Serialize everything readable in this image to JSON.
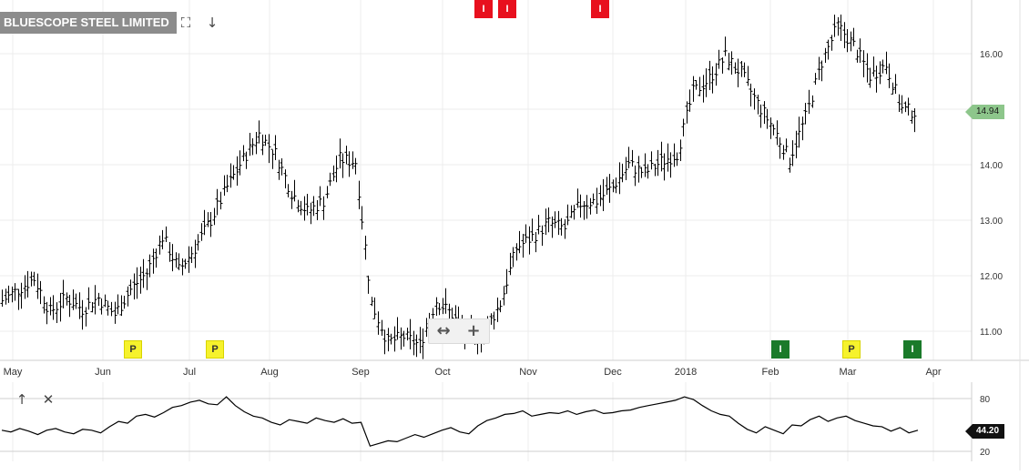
{
  "title": "BLUESCOPE STEEL LIMITED",
  "toolbar": {
    "expand_icon": "expand-icon",
    "download_icon": "arrow-down-icon"
  },
  "zoom": {
    "minus_label": "↔",
    "plus_label": "+"
  },
  "indicator": {
    "up_icon": "arrow-up-icon",
    "close_icon": "close-icon"
  },
  "colors": {
    "event_red": "#e8101e",
    "event_green": "#1a7a2a",
    "event_yellow": "#f6f22c",
    "price_tag": "#8dc68b",
    "line": "#000000",
    "grid": "#ececec"
  },
  "chart_data": [
    {
      "type": "ohlc",
      "title": "BLUESCOPE STEEL LIMITED",
      "x_tick_labels": [
        "May",
        "Jun",
        "Jul",
        "Aug",
        "Sep",
        "Oct",
        "Nov",
        "Dec",
        "2018",
        "Feb",
        "Mar",
        "Apr"
      ],
      "y_tick_values": [
        11.0,
        12.0,
        13.0,
        14.0,
        15.0,
        16.0
      ],
      "y_tick_labels": [
        "11.00",
        "12.00",
        "13.00",
        "14.00",
        "",
        "16.00"
      ],
      "ylim": [
        10.45,
        17.0
      ],
      "grid": true,
      "last_price": 14.94,
      "last_price_label": "14.94",
      "series_close": [
        {
          "x": "2017-04-24",
          "y": 11.55
        },
        {
          "x": "2017-05-01",
          "y": 11.75
        },
        {
          "x": "2017-05-08",
          "y": 11.95
        },
        {
          "x": "2017-05-15",
          "y": 11.35
        },
        {
          "x": "2017-05-22",
          "y": 11.6
        },
        {
          "x": "2017-05-29",
          "y": 11.4
        },
        {
          "x": "2017-06-05",
          "y": 11.6
        },
        {
          "x": "2017-06-12",
          "y": 11.3
        },
        {
          "x": "2017-06-19",
          "y": 11.75
        },
        {
          "x": "2017-06-26",
          "y": 12.05
        },
        {
          "x": "2017-07-03",
          "y": 12.7
        },
        {
          "x": "2017-07-10",
          "y": 12.1
        },
        {
          "x": "2017-07-17",
          "y": 12.5
        },
        {
          "x": "2017-07-24",
          "y": 13.0
        },
        {
          "x": "2017-07-31",
          "y": 13.6
        },
        {
          "x": "2017-08-07",
          "y": 14.1
        },
        {
          "x": "2017-08-14",
          "y": 14.55
        },
        {
          "x": "2017-08-21",
          "y": 14.2
        },
        {
          "x": "2017-08-28",
          "y": 13.5
        },
        {
          "x": "2017-09-04",
          "y": 13.15
        },
        {
          "x": "2017-09-11",
          "y": 13.35
        },
        {
          "x": "2017-09-18",
          "y": 14.1
        },
        {
          "x": "2017-09-25",
          "y": 14.05
        },
        {
          "x": "2017-10-02",
          "y": 11.5
        },
        {
          "x": "2017-10-09",
          "y": 10.8
        },
        {
          "x": "2017-10-16",
          "y": 10.9
        },
        {
          "x": "2017-10-23",
          "y": 10.75
        },
        {
          "x": "2017-10-30",
          "y": 11.55
        },
        {
          "x": "2017-11-06",
          "y": 11.3
        },
        {
          "x": "2017-11-13",
          "y": 10.85
        },
        {
          "x": "2017-11-20",
          "y": 11.0
        },
        {
          "x": "2017-11-27",
          "y": 11.5
        },
        {
          "x": "2017-12-04",
          "y": 12.5
        },
        {
          "x": "2017-12-11",
          "y": 12.7
        },
        {
          "x": "2017-12-18",
          "y": 12.95
        },
        {
          "x": "2017-12-25",
          "y": 12.85
        },
        {
          "x": "2018-01-01",
          "y": 13.3
        },
        {
          "x": "2018-01-08",
          "y": 13.35
        },
        {
          "x": "2018-01-15",
          "y": 13.6
        },
        {
          "x": "2018-01-22",
          "y": 14.0
        },
        {
          "x": "2018-01-29",
          "y": 13.85
        },
        {
          "x": "2018-02-05",
          "y": 14.05
        },
        {
          "x": "2018-02-12",
          "y": 14.2
        },
        {
          "x": "2018-02-19",
          "y": 15.3
        },
        {
          "x": "2018-02-26",
          "y": 15.55
        },
        {
          "x": "2018-03-05",
          "y": 15.95
        },
        {
          "x": "2018-03-12",
          "y": 15.65
        },
        {
          "x": "2018-03-19",
          "y": 15.1
        },
        {
          "x": "2018-03-26",
          "y": 14.65
        },
        {
          "x": "2018-04-02",
          "y": 14.1
        },
        {
          "x": "2018-04-09",
          "y": 14.85
        },
        {
          "x": "2018-04-16",
          "y": 15.85
        },
        {
          "x": "2018-04-23",
          "y": 16.5
        },
        {
          "x": "2018-04-30",
          "y": 16.15
        },
        {
          "x": "2018-05-07",
          "y": 15.6
        },
        {
          "x": "2018-05-14",
          "y": 15.8
        },
        {
          "x": "2018-05-21",
          "y": 15.0
        },
        {
          "x": "2018-05-28",
          "y": 14.94
        }
      ],
      "event_markers": [
        {
          "label": "I",
          "kind": "red",
          "x": "2017-11-06",
          "position": "top"
        },
        {
          "label": "I",
          "kind": "red",
          "x": "2017-11-20",
          "position": "top"
        },
        {
          "label": "I",
          "kind": "red",
          "x": "2018-01-08",
          "position": "top"
        },
        {
          "label": "P",
          "kind": "yellow",
          "x": "2017-06-12",
          "position": "bottom"
        },
        {
          "label": "P",
          "kind": "yellow",
          "x": "2017-07-24",
          "position": "bottom"
        },
        {
          "label": "I",
          "kind": "green",
          "x": "2018-04-02",
          "position": "bottom"
        },
        {
          "label": "P",
          "kind": "yellow",
          "x": "2018-05-07",
          "position": "bottom"
        },
        {
          "label": "I",
          "kind": "green",
          "x": "2018-05-28",
          "position": "bottom"
        }
      ]
    },
    {
      "type": "line",
      "y_tick_values": [
        20,
        80
      ],
      "y_tick_labels": [
        "20",
        "80"
      ],
      "ylim": [
        15,
        85
      ],
      "last_value": 44.2,
      "last_value_label": "44.20",
      "values": [
        44,
        42,
        46,
        43,
        39,
        44,
        46,
        42,
        40,
        45,
        44,
        41,
        48,
        54,
        52,
        60,
        62,
        59,
        64,
        70,
        72,
        76,
        78,
        74,
        73,
        82,
        72,
        65,
        60,
        58,
        53,
        50,
        56,
        54,
        52,
        58,
        55,
        53,
        57,
        52,
        53,
        26,
        29,
        32,
        31,
        35,
        39,
        36,
        40,
        44,
        47,
        42,
        40,
        49,
        55,
        58,
        62,
        63,
        66,
        60,
        62,
        64,
        63,
        66,
        62,
        65,
        67,
        63,
        64,
        66,
        67,
        70,
        72,
        74,
        76,
        78,
        82,
        79,
        72,
        66,
        62,
        60,
        52,
        45,
        41,
        48,
        44,
        40,
        50,
        49,
        56,
        60,
        54,
        58,
        60,
        55,
        52,
        49,
        48,
        43,
        47,
        41,
        44
      ]
    }
  ]
}
